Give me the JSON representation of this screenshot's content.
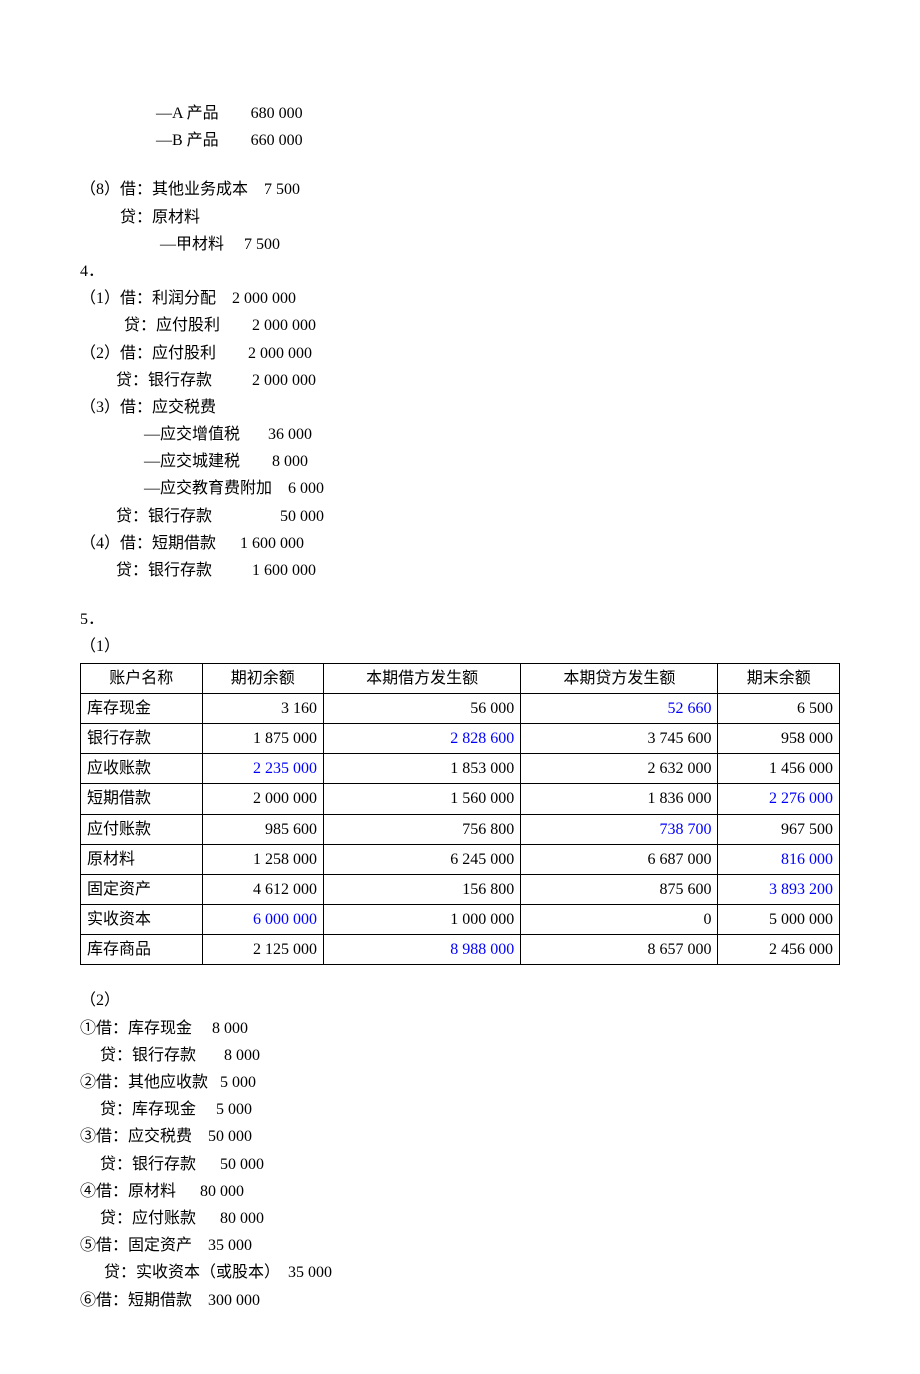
{
  "top": {
    "line1": "                   —A 产品        680 000",
    "line2": "                   —B 产品        660 000"
  },
  "s8": {
    "l1": "（8）借：其他业务成本    7 500",
    "l2": "          贷：原材料",
    "l3": "                    —甲材料     7 500"
  },
  "s4": {
    "head": "4．",
    "l1": "（1）借：利润分配    2 000 000",
    "l2": "           贷：应付股利        2 000 000",
    "l3": "（2）借：应付股利        2 000 000",
    "l4": "         贷：银行存款          2 000 000",
    "l5": "（3）借：应交税费",
    "l6": "                —应交增值税       36 000",
    "l7": "                —应交城建税        8 000",
    "l8": "                —应交教育费附加    6 000",
    "l9": "         贷：银行存款                 50 000",
    "l10": "（4）借：短期借款      1 600 000",
    "l11": "         贷：银行存款          1 600 000"
  },
  "s5": {
    "head": "5．",
    "sub1": "（1）",
    "sub2": "（2）",
    "j1": "①借：库存现金     8 000",
    "j1c": "     贷：银行存款       8 000",
    "j2": "②借：其他应收款   5 000",
    "j2c": "     贷：库存现金     5 000",
    "j3": "③借：应交税费    50 000",
    "j3c": "     贷：银行存款      50 000",
    "j4": "④借：原材料      80 000",
    "j4c": "     贷：应付账款      80 000",
    "j5": "⑤借：固定资产    35 000",
    "j5c": "      贷：实收资本（或股本）  35 000",
    "j6": "⑥借：短期借款    300 000"
  },
  "table": {
    "headers": [
      "账户名称",
      "期初余额",
      "本期借方发生额",
      "本期贷方发生额",
      "期末余额"
    ],
    "rows": [
      {
        "name": "库存现金",
        "b": "3 160",
        "d": "56 000",
        "c": "52 660",
        "e": "6 500",
        "blue": [
          "c"
        ]
      },
      {
        "name": "银行存款",
        "b": "1 875 000",
        "d": "2 828 600",
        "c": "3 745 600",
        "e": "958 000",
        "blue": [
          "d"
        ]
      },
      {
        "name": "应收账款",
        "b": "2 235 000",
        "d": "1 853 000",
        "c": "2 632 000",
        "e": "1 456 000",
        "blue": [
          "b"
        ]
      },
      {
        "name": "短期借款",
        "b": "2 000 000",
        "d": "1 560 000",
        "c": "1 836 000",
        "e": "2 276 000",
        "blue": [
          "e"
        ]
      },
      {
        "name": "应付账款",
        "b": "985 600",
        "d": "756 800",
        "c": "738 700",
        "e": "967 500",
        "blue": [
          "c"
        ]
      },
      {
        "name": "原材料",
        "b": "1 258 000",
        "d": "6 245 000",
        "c": "6 687 000",
        "e": "816 000",
        "blue": [
          "e"
        ]
      },
      {
        "name": "固定资产",
        "b": "4 612 000",
        "d": "156 800",
        "c": "875 600",
        "e": "3 893 200",
        "blue": [
          "e"
        ]
      },
      {
        "name": "实收资本",
        "b": "6 000 000",
        "d": "1 000 000",
        "c": "0",
        "e": "5 000 000",
        "blue": [
          "b"
        ]
      },
      {
        "name": "库存商品",
        "b": "2 125 000",
        "d": "8 988 000",
        "c": "8 657 000",
        "e": "2 456 000",
        "blue": [
          "d"
        ]
      }
    ]
  }
}
